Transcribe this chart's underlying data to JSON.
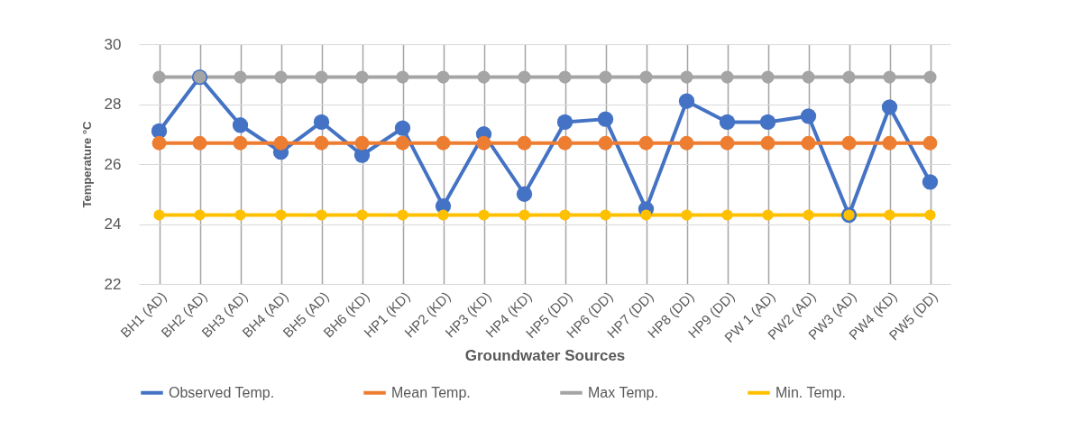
{
  "chart_data": {
    "type": "line",
    "xlabel": "Groundwater Sources",
    "ylabel": "Temperature °C",
    "categories": [
      "BH1  (AD)",
      "BH2 (AD)",
      "BH3 (AD)",
      "BH4 (AD)",
      "BH5 (AD)",
      "BH6  (KD)",
      "HP1  (KD)",
      "HP2  (KD)",
      "HP3  (KD)",
      "HP4  (KD)",
      "HP5  (DD)",
      "HP6  (DD)",
      "HP7 (DD)",
      "HP8  (DD)",
      "HP9  (DD)",
      "PW 1 (AD)",
      "PW2  (AD)",
      "PW3 (AD)",
      "PW4  (KD)",
      "PW5  (DD)"
    ],
    "series": [
      {
        "name": "Observed Temp.",
        "color": "#4472c4",
        "values": [
          27.1,
          28.9,
          27.3,
          26.4,
          27.4,
          26.3,
          27.2,
          24.6,
          27.0,
          25.0,
          27.4,
          27.5,
          24.5,
          28.1,
          27.4,
          27.4,
          27.6,
          24.3,
          27.9,
          25.4
        ]
      },
      {
        "name": "Mean Temp.",
        "color": "#ed7d31",
        "values": [
          26.7,
          26.7,
          26.7,
          26.7,
          26.7,
          26.7,
          26.7,
          26.7,
          26.7,
          26.7,
          26.7,
          26.7,
          26.7,
          26.7,
          26.7,
          26.7,
          26.7,
          26.7,
          26.7,
          26.7
        ]
      },
      {
        "name": "Max Temp.",
        "color": "#a5a5a5",
        "values": [
          28.9,
          28.9,
          28.9,
          28.9,
          28.9,
          28.9,
          28.9,
          28.9,
          28.9,
          28.9,
          28.9,
          28.9,
          28.9,
          28.9,
          28.9,
          28.9,
          28.9,
          28.9,
          28.9,
          28.9
        ]
      },
      {
        "name": "Min. Temp.",
        "color": "#ffc000",
        "values": [
          24.3,
          24.3,
          24.3,
          24.3,
          24.3,
          24.3,
          24.3,
          24.3,
          24.3,
          24.3,
          24.3,
          24.3,
          24.3,
          24.3,
          24.3,
          24.3,
          24.3,
          24.3,
          24.3,
          24.3
        ]
      }
    ],
    "ylim": [
      22,
      30
    ],
    "yticks": [
      22,
      24,
      26,
      28,
      30
    ],
    "grid": true,
    "legend": "bottom",
    "marker": "circle",
    "line_style": "solid"
  }
}
